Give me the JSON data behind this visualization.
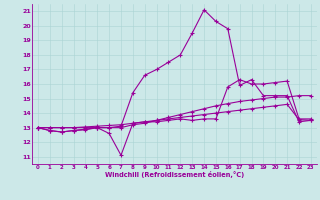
{
  "xlabel": "Windchill (Refroidissement éolien,°C)",
  "background_color": "#cce8e8",
  "line_color": "#990099",
  "grid_color": "#aad4d4",
  "xlim": [
    -0.5,
    23.5
  ],
  "ylim": [
    10.5,
    21.5
  ],
  "yticks": [
    11,
    12,
    13,
    14,
    15,
    16,
    17,
    18,
    19,
    20,
    21
  ],
  "xticks": [
    0,
    1,
    2,
    3,
    4,
    5,
    6,
    7,
    8,
    9,
    10,
    11,
    12,
    13,
    14,
    15,
    16,
    17,
    18,
    19,
    20,
    21,
    22,
    23
  ],
  "lines": [
    {
      "x": [
        0,
        1,
        2,
        3,
        4,
        5,
        6,
        7,
        8,
        9,
        10,
        11,
        12,
        13,
        14,
        15,
        16,
        17,
        18,
        19,
        20,
        21,
        22,
        23
      ],
      "y": [
        13,
        12.8,
        12.7,
        12.8,
        12.9,
        13.0,
        12.6,
        11.1,
        13.3,
        13.4,
        13.4,
        13.5,
        13.6,
        13.5,
        13.6,
        13.6,
        15.8,
        16.3,
        16.0,
        16.0,
        16.1,
        16.2,
        13.6,
        13.6
      ]
    },
    {
      "x": [
        0,
        1,
        2,
        3,
        4,
        5,
        6,
        7,
        8,
        9,
        10,
        11,
        12,
        13,
        14,
        15,
        16,
        17,
        18,
        19,
        20,
        21,
        22,
        23
      ],
      "y": [
        13,
        13,
        13,
        13,
        13,
        13,
        13,
        13,
        13.2,
        13.3,
        13.5,
        13.7,
        13.9,
        14.1,
        14.3,
        14.5,
        14.65,
        14.8,
        14.9,
        15.0,
        15.1,
        15.1,
        15.2,
        15.2
      ]
    },
    {
      "x": [
        0,
        1,
        2,
        3,
        4,
        5,
        6,
        7,
        8,
        9,
        10,
        11,
        12,
        13,
        14,
        15,
        16,
        17,
        18,
        19,
        20,
        21,
        22,
        23
      ],
      "y": [
        13,
        13,
        13,
        13,
        13.05,
        13.1,
        13.15,
        13.2,
        13.3,
        13.4,
        13.5,
        13.6,
        13.7,
        13.8,
        13.9,
        14.0,
        14.1,
        14.2,
        14.3,
        14.4,
        14.5,
        14.6,
        13.55,
        13.5
      ]
    },
    {
      "x": [
        0,
        1,
        2,
        3,
        4,
        5,
        6,
        7,
        8,
        9,
        10,
        11,
        12,
        13,
        14,
        15,
        16,
        17,
        18,
        19,
        20,
        21,
        22,
        23
      ],
      "y": [
        13,
        12.8,
        12.7,
        12.8,
        12.85,
        13.0,
        13.0,
        13.1,
        15.4,
        16.6,
        17.0,
        17.5,
        18.0,
        19.5,
        21.1,
        20.3,
        19.8,
        15.9,
        16.3,
        15.2,
        15.2,
        15.2,
        13.4,
        13.5
      ]
    }
  ]
}
